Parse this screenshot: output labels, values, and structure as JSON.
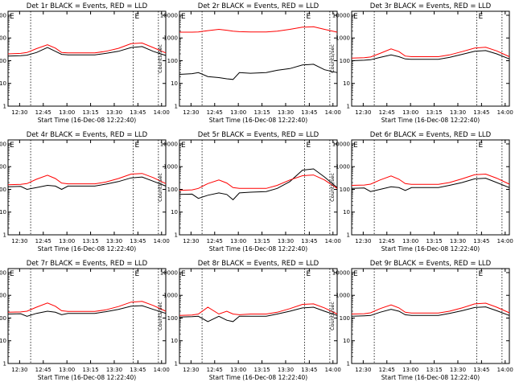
{
  "figure": {
    "x_tick_labels": [
      "12:30",
      "12:45",
      "13:00",
      "13:15",
      "13:30",
      "13:45",
      "14:00"
    ],
    "y_tick_labels": [
      "1",
      "10",
      "100",
      "1000",
      "10000"
    ],
    "ylabel": "Counts/sec",
    "xlabel": "Start Time (16-Dec-08 12:22:40)",
    "series_colors": {
      "events": "#000000",
      "lld": "#ff0000"
    },
    "dotted_line_times": [
      "12:37",
      "13:42",
      "13:58"
    ],
    "dotted_line_marker": "E"
  },
  "chart_data": [
    {
      "type": "line",
      "title": "Det 1r BLACK = Events, RED = LLD",
      "x_unit": "minutes since 12:22:40",
      "xlim": [
        0,
        100
      ],
      "ylim": [
        1,
        15000
      ],
      "yscale": "log",
      "x": [
        0,
        8,
        12,
        18,
        25,
        30,
        34,
        38,
        45,
        55,
        62,
        70,
        78,
        85,
        92,
        100
      ],
      "series": [
        {
          "values": [
            160,
            165,
            175,
            230,
            380,
            260,
            190,
            180,
            180,
            180,
            210,
            260,
            380,
            420,
            260,
            170
          ]
        },
        {
          "values": [
            200,
            210,
            230,
            340,
            500,
            360,
            230,
            220,
            220,
            220,
            260,
            350,
            560,
            600,
            380,
            220
          ]
        }
      ]
    },
    {
      "type": "line",
      "title": "Det 2r BLACK = Events, RED = LLD",
      "x_unit": "minutes since 12:22:40",
      "xlim": [
        0,
        100
      ],
      "ylim": [
        1,
        15000
      ],
      "yscale": "log",
      "x": [
        0,
        8,
        12,
        18,
        25,
        30,
        34,
        38,
        45,
        55,
        62,
        70,
        78,
        85,
        92,
        100
      ],
      "series": [
        {
          "values": [
            25,
            27,
            30,
            20,
            18,
            16,
            15,
            30,
            28,
            30,
            38,
            45,
            65,
            70,
            40,
            30
          ]
        },
        {
          "values": [
            1800,
            1800,
            1850,
            2100,
            2400,
            2200,
            2000,
            1900,
            1850,
            1850,
            2000,
            2400,
            3000,
            3100,
            2400,
            1800
          ]
        }
      ]
    },
    {
      "type": "line",
      "title": "Det 3r BLACK = Events, RED = LLD",
      "x_unit": "minutes since 12:22:40",
      "xlim": [
        0,
        100
      ],
      "ylim": [
        1,
        15000
      ],
      "yscale": "log",
      "x": [
        0,
        8,
        12,
        18,
        25,
        30,
        34,
        38,
        45,
        55,
        62,
        70,
        78,
        85,
        92,
        100
      ],
      "series": [
        {
          "values": [
            100,
            105,
            110,
            140,
            180,
            150,
            120,
            115,
            115,
            115,
            140,
            190,
            260,
            280,
            200,
            120
          ]
        },
        {
          "values": [
            130,
            135,
            145,
            210,
            330,
            250,
            160,
            150,
            150,
            150,
            180,
            250,
            360,
            390,
            270,
            150
          ]
        }
      ]
    },
    {
      "type": "line",
      "title": "Det 4r BLACK = Events, RED = LLD",
      "x_unit": "minutes since 12:22:40",
      "xlim": [
        0,
        100
      ],
      "ylim": [
        1,
        15000
      ],
      "yscale": "log",
      "x": [
        0,
        8,
        12,
        18,
        25,
        30,
        34,
        38,
        45,
        55,
        62,
        70,
        78,
        85,
        92,
        100
      ],
      "series": [
        {
          "values": [
            130,
            135,
            100,
            120,
            150,
            140,
            100,
            140,
            140,
            140,
            170,
            220,
            320,
            350,
            230,
            140
          ]
        },
        {
          "values": [
            160,
            165,
            180,
            280,
            420,
            300,
            190,
            175,
            175,
            175,
            210,
            300,
            470,
            500,
            330,
            180
          ]
        }
      ]
    },
    {
      "type": "line",
      "title": "Det 5r BLACK = Events, RED = LLD",
      "x_unit": "minutes since 12:22:40",
      "xlim": [
        0,
        100
      ],
      "ylim": [
        1,
        15000
      ],
      "yscale": "log",
      "x": [
        0,
        8,
        12,
        18,
        25,
        30,
        34,
        38,
        45,
        55,
        62,
        70,
        78,
        85,
        92,
        100
      ],
      "series": [
        {
          "values": [
            60,
            62,
            40,
            55,
            70,
            60,
            35,
            70,
            75,
            80,
            110,
            220,
            700,
            800,
            350,
            120
          ]
        },
        {
          "values": [
            90,
            95,
            110,
            180,
            260,
            190,
            120,
            110,
            110,
            110,
            150,
            260,
            400,
            430,
            260,
            110
          ]
        }
      ]
    },
    {
      "type": "line",
      "title": "Det 6r BLACK = Events, RED = LLD",
      "x_unit": "minutes since 12:22:40",
      "xlim": [
        0,
        100
      ],
      "ylim": [
        1,
        15000
      ],
      "yscale": "log",
      "x": [
        0,
        8,
        12,
        18,
        25,
        30,
        34,
        38,
        45,
        55,
        62,
        70,
        78,
        85,
        92,
        100
      ],
      "series": [
        {
          "values": [
            110,
            115,
            80,
            100,
            130,
            120,
            90,
            120,
            120,
            120,
            150,
            200,
            290,
            310,
            200,
            120
          ]
        },
        {
          "values": [
            150,
            155,
            170,
            260,
            390,
            280,
            180,
            165,
            165,
            165,
            200,
            290,
            440,
            470,
            310,
            170
          ]
        }
      ]
    },
    {
      "type": "line",
      "title": "Det 7r BLACK = Events, RED = LLD",
      "x_unit": "minutes since 12:22:40",
      "xlim": [
        0,
        100
      ],
      "ylim": [
        1,
        15000
      ],
      "yscale": "log",
      "x": [
        0,
        8,
        12,
        18,
        25,
        30,
        34,
        38,
        45,
        55,
        62,
        70,
        78,
        85,
        92,
        100
      ],
      "series": [
        {
          "values": [
            150,
            155,
            120,
            160,
            200,
            180,
            140,
            160,
            160,
            160,
            190,
            240,
            330,
            350,
            240,
            160
          ]
        },
        {
          "values": [
            180,
            185,
            200,
            300,
            460,
            330,
            210,
            195,
            195,
            195,
            230,
            320,
            500,
            540,
            360,
            200
          ]
        }
      ]
    },
    {
      "type": "line",
      "title": "Det 8r BLACK = Events, RED = LLD",
      "x_unit": "minutes since 12:22:40",
      "xlim": [
        0,
        100
      ],
      "ylim": [
        1,
        15000
      ],
      "yscale": "log",
      "x": [
        0,
        8,
        12,
        18,
        25,
        30,
        34,
        38,
        45,
        55,
        62,
        70,
        78,
        85,
        92,
        100
      ],
      "series": [
        {
          "values": [
            110,
            115,
            120,
            70,
            120,
            80,
            70,
            120,
            120,
            120,
            150,
            200,
            280,
            300,
            200,
            130
          ]
        },
        {
          "values": [
            130,
            135,
            150,
            300,
            150,
            200,
            150,
            140,
            150,
            150,
            180,
            260,
            400,
            420,
            280,
            150
          ]
        }
      ]
    },
    {
      "type": "line",
      "title": "Det 9r BLACK = Events, RED = LLD",
      "x_unit": "minutes since 12:22:40",
      "xlim": [
        0,
        100
      ],
      "ylim": [
        1,
        15000
      ],
      "yscale": "log",
      "x": [
        0,
        8,
        12,
        18,
        25,
        30,
        34,
        38,
        45,
        55,
        62,
        70,
        78,
        85,
        92,
        100
      ],
      "series": [
        {
          "values": [
            120,
            125,
            130,
            180,
            240,
            200,
            140,
            130,
            130,
            130,
            160,
            210,
            290,
            310,
            210,
            130
          ]
        },
        {
          "values": [
            150,
            155,
            170,
            260,
            380,
            280,
            180,
            165,
            165,
            165,
            200,
            280,
            420,
            450,
            300,
            170
          ]
        }
      ]
    }
  ]
}
